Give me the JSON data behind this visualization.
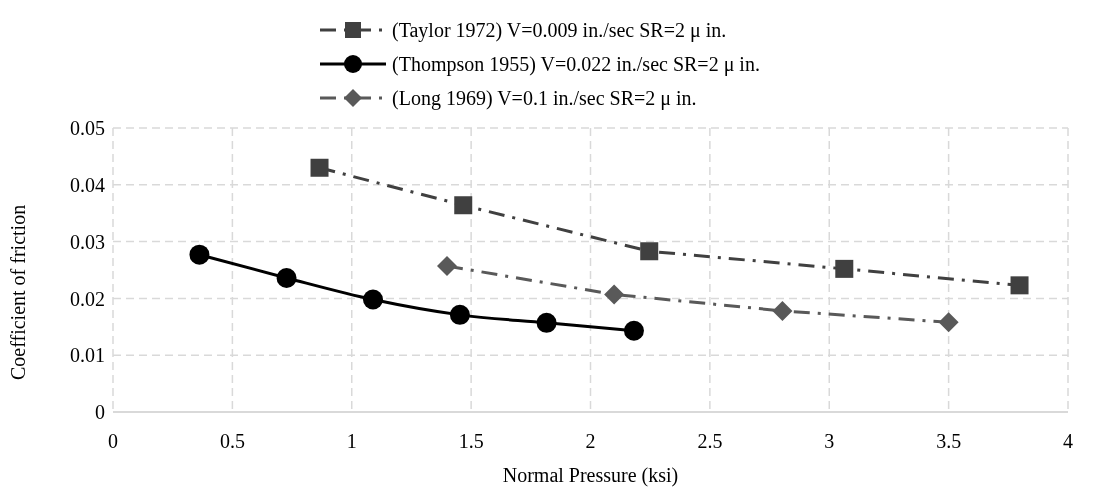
{
  "chart_data": {
    "type": "line",
    "xlabel": "Normal Pressure (ksi)",
    "ylabel": "Coefficient of friction",
    "xlim": [
      0,
      4
    ],
    "xticks": [
      0,
      0.5,
      1,
      1.5,
      2,
      2.5,
      3,
      3.5,
      4
    ],
    "ylim": [
      0,
      0.05
    ],
    "yticks": [
      0,
      0.01,
      0.02,
      0.03,
      0.04,
      0.05
    ],
    "grid": true,
    "legend": "top",
    "series": [
      {
        "name": "(Taylor 1972) V=0.009 in./sec SR=2 μ in.",
        "color": "#404040",
        "marker": "square",
        "line_style": "dashed",
        "x": [
          0.865,
          1.467,
          2.246,
          3.063,
          3.797
        ],
        "values": [
          0.043,
          0.0364,
          0.0283,
          0.0252,
          0.0223
        ]
      },
      {
        "name": "(Thompson 1955) V=0.022 in./sec SR=2 μ in.",
        "color": "#000000",
        "marker": "circle",
        "line_style": "solid",
        "x": [
          0.362,
          0.727,
          1.089,
          1.453,
          1.816,
          2.182
        ],
        "values": [
          0.0277,
          0.0236,
          0.0198,
          0.0171,
          0.0157,
          0.0143
        ]
      },
      {
        "name": "(Long 1969) V=0.1 in./sec SR=2 μ in.",
        "color": "#595959",
        "marker": "diamond",
        "line_style": "dashed",
        "x": [
          1.399,
          2.099,
          2.804,
          3.5
        ],
        "values": [
          0.0257,
          0.0207,
          0.0178,
          0.0158
        ]
      }
    ]
  }
}
